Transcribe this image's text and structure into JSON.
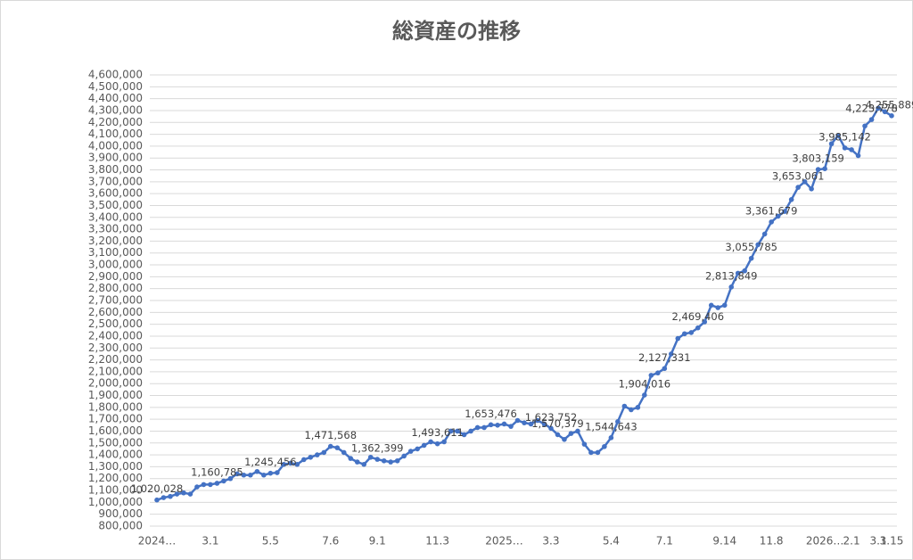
{
  "chart_data": {
    "type": "line",
    "title": "総資産の推移",
    "categories": [
      "2024…",
      null,
      null,
      null,
      null,
      null,
      null,
      null,
      "3.1",
      null,
      null,
      null,
      null,
      null,
      null,
      null,
      null,
      "5.5",
      null,
      null,
      null,
      null,
      null,
      null,
      null,
      null,
      "7.6",
      null,
      null,
      null,
      null,
      null,
      null,
      "9.1",
      null,
      null,
      null,
      null,
      null,
      null,
      null,
      null,
      "11.3",
      null,
      null,
      null,
      null,
      null,
      null,
      null,
      null,
      null,
      "2025…",
      null,
      null,
      null,
      null,
      null,
      null,
      "3.3",
      null,
      null,
      null,
      null,
      null,
      null,
      null,
      null,
      "5.4",
      null,
      null,
      null,
      null,
      null,
      null,
      null,
      "7.1",
      null,
      null,
      null,
      null,
      null,
      null,
      null,
      null,
      "9.14",
      null,
      null,
      null,
      null,
      null,
      null,
      "11.8",
      null,
      null,
      null,
      null,
      null,
      null,
      null,
      "2026…",
      null,
      null,
      null,
      "2.1",
      null,
      null,
      null,
      "3.1",
      null,
      "3.15"
    ],
    "values": [
      1020028,
      1040000,
      1050000,
      1070000,
      1080000,
      1070000,
      1130000,
      1150000,
      1150000,
      1160785,
      1180000,
      1200000,
      1240000,
      1230000,
      1230000,
      1260000,
      1230000,
      1245456,
      1250000,
      1320000,
      1330000,
      1320000,
      1360000,
      1380000,
      1400000,
      1420000,
      1471568,
      1460000,
      1420000,
      1370000,
      1340000,
      1320000,
      1380000,
      1362399,
      1350000,
      1340000,
      1350000,
      1390000,
      1430000,
      1450000,
      1480000,
      1510000,
      1493611,
      1510000,
      1600000,
      1600000,
      1570000,
      1600000,
      1630000,
      1630000,
      1653476,
      1650000,
      1660000,
      1640000,
      1690000,
      1670000,
      1660000,
      1690000,
      1660000,
      1623752,
      1570379,
      1530000,
      1580000,
      1600000,
      1490000,
      1420000,
      1420000,
      1470000,
      1544643,
      1680000,
      1810000,
      1780000,
      1800000,
      1904016,
      2070000,
      2090000,
      2127331,
      2250000,
      2380000,
      2420000,
      2430000,
      2469406,
      2520000,
      2660000,
      2640000,
      2660000,
      2813849,
      2930000,
      2950000,
      3055785,
      3170000,
      3260000,
      3361679,
      3410000,
      3450000,
      3550000,
      3653061,
      3700000,
      3640000,
      3803159,
      3810000,
      4020000,
      4090000,
      3985142,
      3970000,
      3920000,
      4170000,
      4223778,
      4320000,
      4290000,
      4255889
    ],
    "value_labels": [
      "1,020,028",
      null,
      null,
      null,
      null,
      null,
      null,
      null,
      null,
      "1,160,785",
      null,
      null,
      null,
      null,
      null,
      null,
      null,
      "1,245,456",
      null,
      null,
      null,
      null,
      null,
      null,
      null,
      null,
      "1,471,568",
      null,
      null,
      null,
      null,
      null,
      null,
      "1,362,399",
      null,
      null,
      null,
      null,
      null,
      null,
      null,
      null,
      "1,493,611",
      null,
      null,
      null,
      null,
      null,
      null,
      null,
      "1,653,476",
      null,
      null,
      null,
      null,
      null,
      null,
      null,
      null,
      "1,623,752",
      "1,570,379",
      null,
      null,
      null,
      null,
      null,
      null,
      null,
      "1,544,643",
      null,
      null,
      null,
      null,
      "1,904,016",
      null,
      null,
      "2,127,331",
      null,
      null,
      null,
      null,
      "2,469,406",
      null,
      null,
      null,
      null,
      "2,813,849",
      null,
      null,
      "3,055,785",
      null,
      null,
      "3,361,679",
      null,
      null,
      null,
      "3,653,061",
      null,
      null,
      "3,803,159",
      null,
      null,
      null,
      "3,985,142",
      null,
      null,
      null,
      "4,223,778",
      null,
      null,
      "4,255,889"
    ],
    "color": "#4472c4",
    "ylim": [
      800000,
      4600000
    ],
    "yticks": [
      {
        "value": 800000,
        "label": "800,000"
      },
      {
        "value": 900000,
        "label": "900,000"
      },
      {
        "value": 1000000,
        "label": "1,000,000"
      },
      {
        "value": 1100000,
        "label": "1,100,000"
      },
      {
        "value": 1200000,
        "label": "1,200,000"
      },
      {
        "value": 1300000,
        "label": "1,300,000"
      },
      {
        "value": 1400000,
        "label": "1,400,000"
      },
      {
        "value": 1500000,
        "label": "1,500,000"
      },
      {
        "value": 1600000,
        "label": "1,600,000"
      },
      {
        "value": 1700000,
        "label": "1,700,000"
      },
      {
        "value": 1800000,
        "label": "1,800,000"
      },
      {
        "value": 1900000,
        "label": "1,900,000"
      },
      {
        "value": 2000000,
        "label": "2,000,000"
      },
      {
        "value": 2100000,
        "label": "2,100,000"
      },
      {
        "value": 2200000,
        "label": "2,200,000"
      },
      {
        "value": 2300000,
        "label": "2,300,000"
      },
      {
        "value": 2400000,
        "label": "2,400,000"
      },
      {
        "value": 2500000,
        "label": "2,500,000"
      },
      {
        "value": 2600000,
        "label": "2,600,000"
      },
      {
        "value": 2700000,
        "label": "2,700,000"
      },
      {
        "value": 2800000,
        "label": "2,800,000"
      },
      {
        "value": 2900000,
        "label": "2,900,000"
      },
      {
        "value": 3000000,
        "label": "3,000,000"
      },
      {
        "value": 3100000,
        "label": "3,100,000"
      },
      {
        "value": 3200000,
        "label": "3,200,000"
      },
      {
        "value": 3300000,
        "label": "3,300,000"
      },
      {
        "value": 3400000,
        "label": "3,400,000"
      },
      {
        "value": 3500000,
        "label": "3,500,000"
      },
      {
        "value": 3600000,
        "label": "3,600,000"
      },
      {
        "value": 3700000,
        "label": "3,700,000"
      },
      {
        "value": 3800000,
        "label": "3,800,000"
      },
      {
        "value": 3900000,
        "label": "3,900,000"
      },
      {
        "value": 4000000,
        "label": "4,000,000"
      },
      {
        "value": 4100000,
        "label": "4,100,000"
      },
      {
        "value": 4200000,
        "label": "4,200,000"
      },
      {
        "value": 4300000,
        "label": "4,300,000"
      },
      {
        "value": 4400000,
        "label": "4,400,000"
      },
      {
        "value": 4500000,
        "label": "4,500,000"
      },
      {
        "value": 4600000,
        "label": "4,600,000"
      }
    ],
    "grid": true
  }
}
